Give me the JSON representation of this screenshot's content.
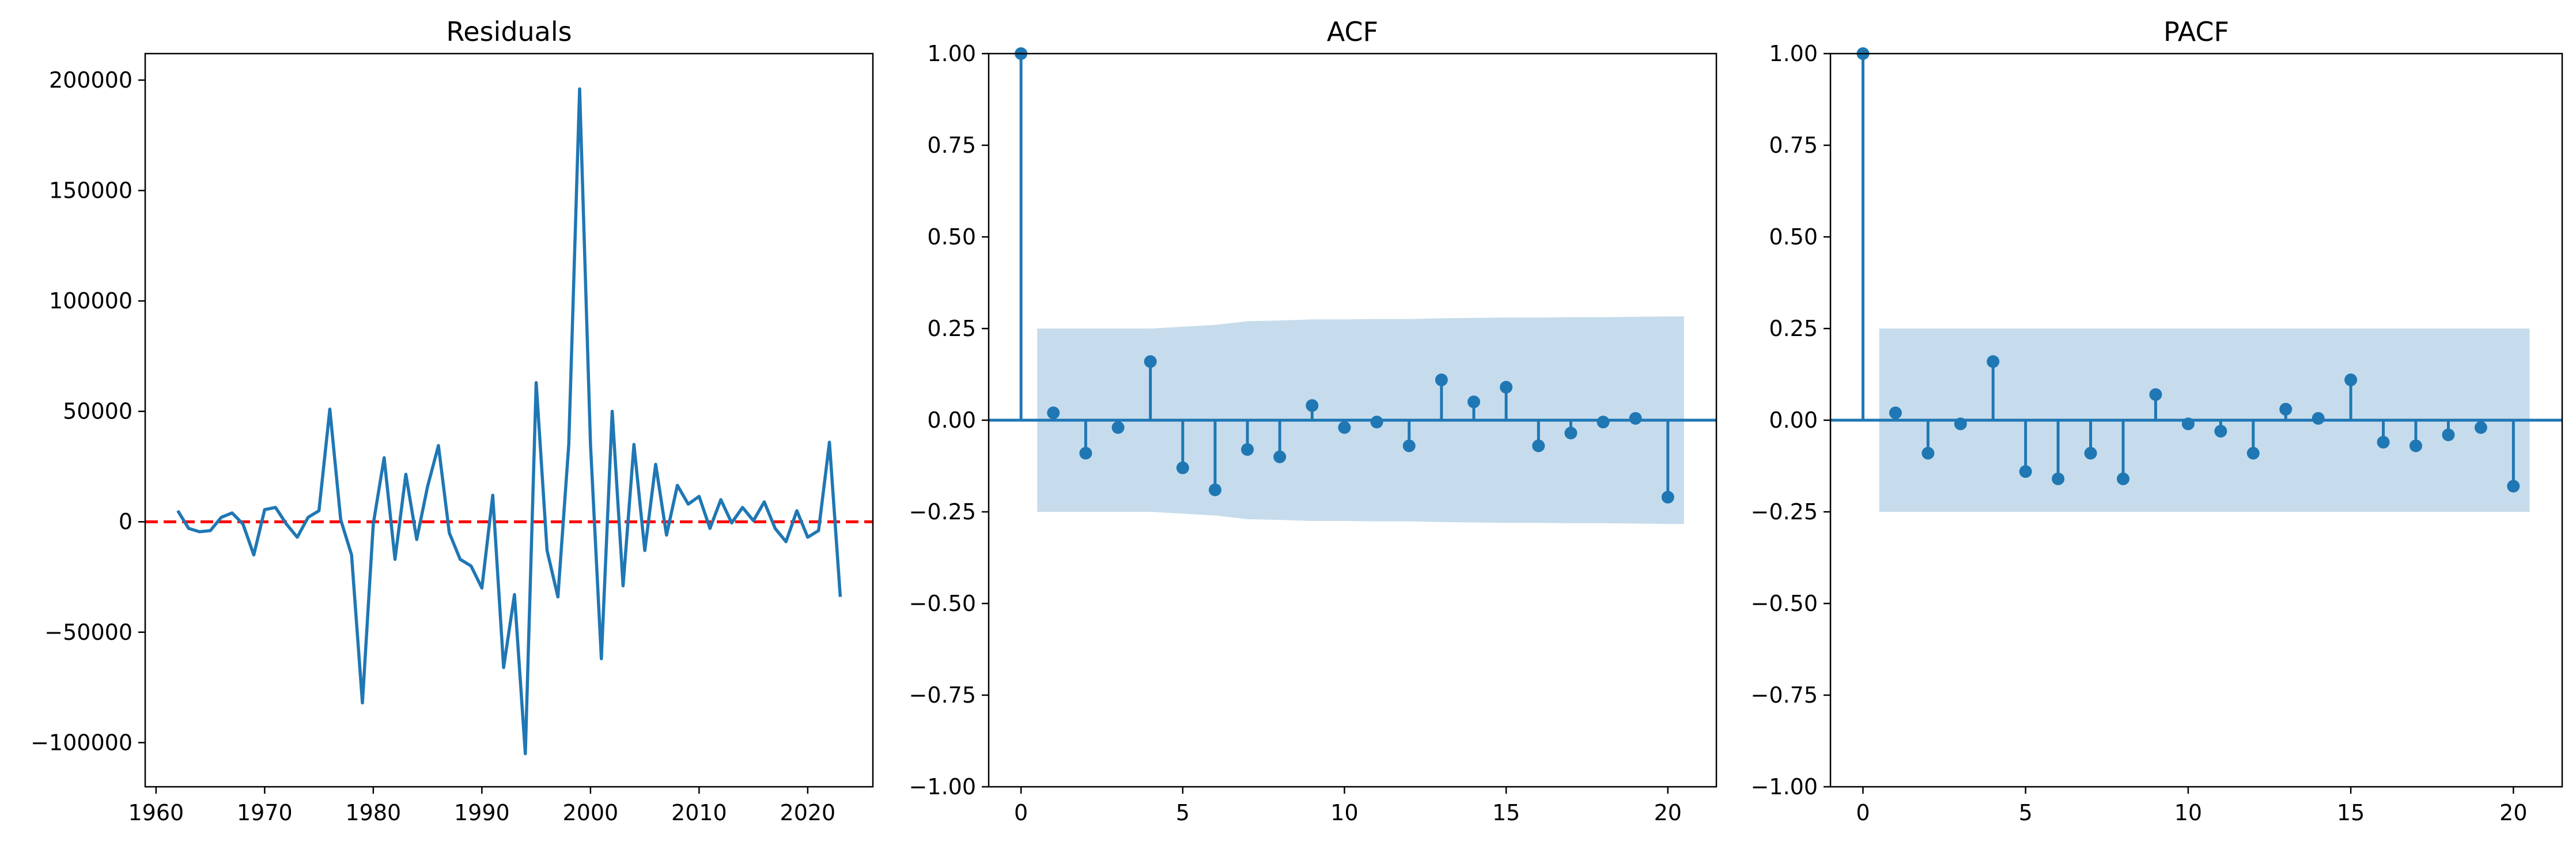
{
  "chart_data": [
    {
      "type": "line",
      "title": "Residuals",
      "xlabel": "",
      "ylabel": "",
      "xlim": [
        1959,
        2026
      ],
      "ylim": [
        -120000,
        212000
      ],
      "xticks": [
        1960,
        1970,
        1980,
        1990,
        2000,
        2010,
        2020
      ],
      "xtick_labels": [
        "1960",
        "1970",
        "1980",
        "1990",
        "2000",
        "2010",
        "2020"
      ],
      "yticks": [
        -100000,
        -50000,
        0,
        50000,
        100000,
        150000,
        200000
      ],
      "ytick_labels": [
        "−100000",
        "−50000",
        "0",
        "50000",
        "100000",
        "150000",
        "200000"
      ],
      "series": [
        {
          "name": "residuals",
          "color": "#1f77b4",
          "x": [
            1962,
            1963,
            1964,
            1965,
            1966,
            1967,
            1968,
            1969,
            1970,
            1971,
            1972,
            1973,
            1974,
            1975,
            1976,
            1977,
            1978,
            1979,
            1980,
            1981,
            1982,
            1983,
            1984,
            1985,
            1986,
            1987,
            1988,
            1989,
            1990,
            1991,
            1992,
            1993,
            1994,
            1995,
            1996,
            1997,
            1998,
            1999,
            2000,
            2001,
            2002,
            2003,
            2004,
            2005,
            2006,
            2007,
            2008,
            2009,
            2010,
            2011,
            2012,
            2013,
            2014,
            2015,
            2016,
            2017,
            2018,
            2019,
            2020,
            2021,
            2022,
            2023
          ],
          "values": [
            5000,
            -3000,
            -4500,
            -4000,
            2000,
            4000,
            -1000,
            -15000,
            5500,
            6500,
            -1000,
            -7000,
            2000,
            5000,
            51000,
            1000,
            -15000,
            -82000,
            -1000,
            29000,
            -17000,
            21500,
            -8000,
            16000,
            34500,
            -5000,
            -17000,
            -20000,
            -30000,
            12000,
            -66000,
            -33000,
            -105000,
            63000,
            -13000,
            -34000,
            35000,
            196000,
            35000,
            -62000,
            50000,
            -29000,
            35000,
            -13000,
            26000,
            -6000,
            16500,
            8000,
            11500,
            -3000,
            10000,
            -500,
            6500,
            500,
            9000,
            -3000,
            -9000,
            5000,
            -7000,
            -4000,
            36000,
            -34000
          ]
        }
      ],
      "reference_line": {
        "y": 0,
        "color": "#ff0000",
        "style": "dashed"
      }
    },
    {
      "type": "stem",
      "title": "ACF",
      "xlabel": "",
      "ylabel": "",
      "xlim": [
        -1,
        21.5
      ],
      "ylim": [
        -1.0,
        1.0
      ],
      "xticks": [
        0,
        5,
        10,
        15,
        20
      ],
      "xtick_labels": [
        "0",
        "5",
        "10",
        "15",
        "20"
      ],
      "yticks": [
        -1.0,
        -0.75,
        -0.5,
        -0.25,
        0.0,
        0.25,
        0.5,
        0.75,
        1.0
      ],
      "ytick_labels": [
        "−1.00",
        "−0.75",
        "−0.50",
        "−0.25",
        "0.00",
        "0.25",
        "0.50",
        "0.75",
        "1.00"
      ],
      "lags": [
        0,
        1,
        2,
        3,
        4,
        5,
        6,
        7,
        8,
        9,
        10,
        11,
        12,
        13,
        14,
        15,
        16,
        17,
        18,
        19,
        20
      ],
      "values": [
        1.0,
        0.02,
        -0.09,
        -0.02,
        0.16,
        -0.13,
        -0.19,
        -0.08,
        -0.1,
        0.04,
        -0.02,
        -0.005,
        -0.07,
        0.11,
        0.05,
        0.09,
        -0.07,
        -0.035,
        -0.005,
        0.005,
        -0.21
      ],
      "confidence_band": {
        "x": [
          0.5,
          1,
          2,
          3,
          4,
          5,
          6,
          7,
          8,
          9,
          10,
          11,
          12,
          13,
          14,
          15,
          16,
          17,
          18,
          19,
          20,
          20.5
        ],
        "upper": [
          0.25,
          0.25,
          0.25,
          0.25,
          0.25,
          0.255,
          0.26,
          0.27,
          0.272,
          0.275,
          0.275,
          0.276,
          0.276,
          0.278,
          0.279,
          0.28,
          0.28,
          0.281,
          0.281,
          0.282,
          0.283,
          0.283
        ],
        "color": "#c6dcec"
      },
      "color": "#1f77b4"
    },
    {
      "type": "stem",
      "title": "PACF",
      "xlabel": "",
      "ylabel": "",
      "xlim": [
        -1,
        21.5
      ],
      "ylim": [
        -1.0,
        1.0
      ],
      "xticks": [
        0,
        5,
        10,
        15,
        20
      ],
      "xtick_labels": [
        "0",
        "5",
        "10",
        "15",
        "20"
      ],
      "yticks": [
        -1.0,
        -0.75,
        -0.5,
        -0.25,
        0.0,
        0.25,
        0.5,
        0.75,
        1.0
      ],
      "ytick_labels": [
        "−1.00",
        "−0.75",
        "−0.50",
        "−0.25",
        "0.00",
        "0.25",
        "0.50",
        "0.75",
        "1.00"
      ],
      "lags": [
        0,
        1,
        2,
        3,
        4,
        5,
        6,
        7,
        8,
        9,
        10,
        11,
        12,
        13,
        14,
        15,
        16,
        17,
        18,
        19,
        20
      ],
      "values": [
        1.0,
        0.02,
        -0.09,
        -0.01,
        0.16,
        -0.14,
        -0.16,
        -0.09,
        -0.16,
        0.07,
        -0.01,
        -0.03,
        -0.09,
        0.03,
        0.005,
        0.11,
        -0.06,
        -0.07,
        -0.04,
        -0.02,
        -0.18
      ],
      "confidence_band": {
        "x": [
          0.5,
          20.5
        ],
        "upper": [
          0.25,
          0.25
        ],
        "color": "#c6dcec"
      },
      "color": "#1f77b4"
    }
  ]
}
